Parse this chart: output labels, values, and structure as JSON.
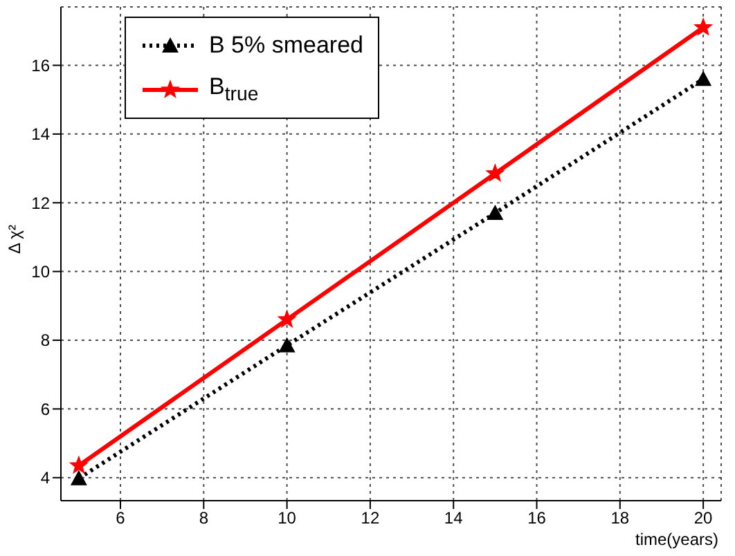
{
  "chart_data": {
    "type": "line",
    "xlabel": "time(years)",
    "ylabel": "Δ χ²",
    "x": [
      5,
      10,
      15,
      20
    ],
    "series": [
      {
        "name": "B 5% smeared",
        "color": "#000000",
        "values": [
          3.98,
          7.85,
          11.7,
          15.6
        ],
        "marker": "triangle",
        "line_style": "dotted"
      },
      {
        "name": "B$_{true}$",
        "color": "#ff0000",
        "values": [
          4.35,
          8.6,
          12.85,
          17.1
        ],
        "marker": "star",
        "line_style": "solid"
      }
    ],
    "xlim": [
      4.57,
      20.43
    ],
    "xticks": [
      6,
      8,
      10,
      12,
      14,
      16,
      18,
      20
    ],
    "ylim": [
      3.33,
      17.7
    ],
    "yticks": [
      4,
      6,
      8,
      10,
      12,
      14,
      16
    ],
    "grid": true,
    "legend": "top left"
  }
}
